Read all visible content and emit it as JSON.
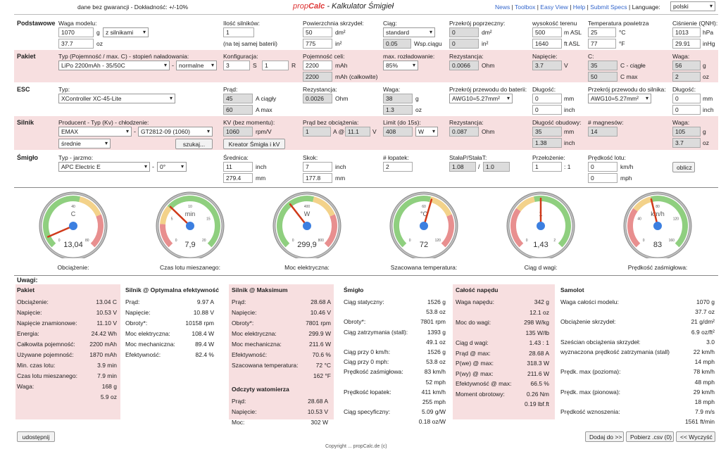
{
  "top": {
    "warranty": "dane bez gwarancji - Dokładność: +/-10%",
    "brand_prefix": "prop",
    "brand_name": "Calc",
    "brand_rest": " - Kalkulator Śmigieł",
    "links": [
      "News",
      "Toolbox",
      "Easy View",
      "Help",
      "Submit Specs"
    ],
    "language_label": "Language:",
    "language": "polski"
  },
  "basic": {
    "title": "Podstawowe",
    "weight_label": "Waga modelu:",
    "weight_g": "1070",
    "weight_unit_g": "g",
    "weight_mode": "z silnikami",
    "weight_oz": "37.7",
    "weight_unit_oz": "oz",
    "motors_label": "Ilość silników:",
    "motors": "1",
    "motors_note": "(na tej samej baterii)",
    "wing_area_label": "Powierzchnia skrzydeł:",
    "wing_dm2": "50",
    "wing_unit_dm2": "dm²",
    "wing_in2": "775",
    "wing_unit_in2": "in²",
    "drag_label": "Ciąg:",
    "drag_mode": "standard",
    "drag_coef": "0.05",
    "drag_coef_label": "Wsp.ciągu",
    "cross_label": "Przekrój poprzeczny:",
    "cross_dm2": "0",
    "cross_unit_dm2": "dm²",
    "cross_in2": "0",
    "cross_unit_in2": "in²",
    "elev_label": "wysokość terenu",
    "elev_m": "500",
    "elev_unit_m": "m ASL",
    "elev_ft": "1640",
    "elev_unit_ft": "ft ASL",
    "temp_label": "Temperatura powietrza",
    "temp_c": "25",
    "temp_unit_c": "°C",
    "temp_f": "77",
    "temp_unit_f": "°F",
    "press_label": "Ciśnienie (QNH):",
    "press_hpa": "1013",
    "press_unit_hpa": "hPa",
    "press_inhg": "29.91",
    "press_unit_inhg": "inHg"
  },
  "pack": {
    "title": "Pakiet",
    "type_label": "Typ (Pojemność / max. C) - stopień naładowania:",
    "type": "LiPo 2200mAh - 35/50C",
    "charge": "normalne",
    "config_label": "Konfiguracja:",
    "s": "3",
    "s_unit": "S",
    "p": "1",
    "p_unit": "R",
    "cap_label": "Pojemność celi:",
    "cap1": "2200",
    "cap1_unit": "mAh",
    "cap2": "2200",
    "cap2_unit": "mAh (całkowite)",
    "disch_label": "max. rozładowanie:",
    "disch": "85%",
    "res_label": "Rezystancja:",
    "res": "0.0066",
    "res_unit": "Ohm",
    "volt_label": "Napięcie:",
    "volt": "3.7",
    "volt_unit": "V",
    "c_label": "C:",
    "c_cont": "35",
    "c_cont_unit": "C - ciągłe",
    "c_max": "50",
    "c_max_unit": "C max",
    "weight_label": "Waga:",
    "weight_g": "56",
    "weight_unit_g": "g",
    "weight_oz": "2",
    "weight_unit_oz": "oz"
  },
  "esc": {
    "title": "ESC",
    "type_label": "Typ:",
    "type": "XController XC-45-Lite",
    "cur_label": "Prąd:",
    "cur_cont": "45",
    "cur_cont_unit": "A ciągły",
    "cur_max": "60",
    "cur_max_unit": "A max",
    "res_label": "Rezystancja:",
    "res": "0.0026",
    "res_unit": "Ohm",
    "weight_label": "Waga:",
    "weight_g": "38",
    "weight_unit_g": "g",
    "weight_oz": "1.3",
    "weight_unit_oz": "oz",
    "bat_wire_label": "Przekrój przewodu do baterii:",
    "bat_wire": "AWG10=5.27mm²",
    "len1_label": "Długość:",
    "len1_mm": "0",
    "len1_unit_mm": "mm",
    "len1_in": "0",
    "len1_unit_in": "inch",
    "mot_wire_label": "Przekrój przewodu do silnika:",
    "mot_wire": "AWG10=5.27mm²",
    "len2_label": "Długość:",
    "len2_mm": "0",
    "len2_unit_mm": "mm",
    "len2_in": "0",
    "len2_unit_in": "inch"
  },
  "motor": {
    "title": "Silnik",
    "type_label": "Producent - Typ (Kv) - chłodzenie:",
    "maker": "EMAX",
    "model": "GT2812-09 (1060)",
    "cooling": "średnie",
    "search": "szukaj...",
    "kv_label": "KV (bez momentu):",
    "kv": "1060",
    "kv_unit": "rpm/V",
    "editor": "Kreator Śmigła i kV",
    "noload_label": "Prąd bez obciążenia:",
    "noload_a": "1",
    "noload_a_unit": "A @",
    "noload_v": "11.1",
    "noload_v_unit": "V",
    "limit_label": "Limit (do 15s):",
    "limit": "408",
    "limit_unit": "W",
    "res_label": "Rezystancja:",
    "res": "0.087",
    "res_unit": "Ohm",
    "case_label": "Długość obudowy:",
    "case_mm": "35",
    "case_unit_mm": "mm",
    "case_in": "1.38",
    "case_unit_in": "inch",
    "poles_label": "# magnesów:",
    "poles": "14",
    "weight_label": "Waga:",
    "weight_g": "105",
    "weight_unit_g": "g",
    "weight_oz": "3.7",
    "weight_unit_oz": "oz"
  },
  "prop": {
    "title": "Śmigło",
    "type_label": "Typ - jarzmo:",
    "type": "APC Electric E",
    "angle": "0°",
    "dia_label": "Średnica:",
    "dia_in": "11",
    "dia_unit_in": "inch",
    "dia_mm": "279.4",
    "dia_unit_mm": "mm",
    "pitch_label": "Skok:",
    "pitch_in": "7",
    "pitch_unit_in": "inch",
    "pitch_mm": "177.8",
    "pitch_unit_mm": "mm",
    "blades_label": "# łopatek:",
    "blades": "2",
    "const_label": "StałaP/StałaT:",
    "const_p": "1.08",
    "const_t": "1.0",
    "ratio_label": "Przełożenie:",
    "ratio": "1",
    "ratio_unit": ": 1",
    "speed_label": "Prędkość lotu:",
    "speed_kmh": "0",
    "speed_unit_kmh": "km/h",
    "speed_mph": "0",
    "speed_unit_mph": "mph",
    "calc": "oblicz"
  },
  "gauges": [
    {
      "caption": "Obciążenie:",
      "unit": "C",
      "value": "13,04",
      "ticks": [
        "0",
        "40",
        "80"
      ],
      "needle": 0.08
    },
    {
      "caption": "Czas lotu mieszanego:",
      "unit": "min",
      "value": "7,9",
      "ticks": [
        "0",
        "5",
        "10",
        "15",
        "20"
      ],
      "needle": 0.33
    },
    {
      "caption": "Moc elektryczna:",
      "unit": "W",
      "value": "299,9",
      "ticks": [
        "0",
        "400",
        "800"
      ],
      "needle": 0.36
    },
    {
      "caption": "Szacowana temperatura:",
      "unit": "°C",
      "value": "72",
      "ticks": [
        "0",
        "60",
        "120"
      ],
      "needle": 0.56
    },
    {
      "caption": "Ciąg d wagi:",
      "unit": "1",
      "value": "1,43",
      "ticks": [
        "0",
        "1",
        "2"
      ],
      "needle": 0.5
    },
    {
      "caption": "Prędkość zaśmigłowa:",
      "unit": "km/h",
      "value": "83",
      "ticks": [
        "0",
        "40",
        "80",
        "120",
        "160"
      ],
      "needle": 0.45
    }
  ],
  "summary": {
    "notes": "Uwagi:",
    "pack": {
      "title": "Pakiet",
      "rows": [
        [
          "Obciążenie:",
          "13.04 C"
        ],
        [
          "Napięcie:",
          "10.53 V"
        ],
        [
          "Napięcie znamionowe:",
          "11.10 V"
        ],
        [
          "Energia:",
          "24.42 Wh"
        ],
        [
          "Całkowita pojemność:",
          "2200 mAh"
        ],
        [
          "Używane pojemność:",
          "1870 mAh"
        ],
        [
          "Min. czas lotu:",
          "3.9 min"
        ],
        [
          "Czas lotu mieszanego:",
          "7.9 min"
        ],
        [
          "Waga:",
          "168 g"
        ],
        [
          "",
          "5.9 oz"
        ]
      ]
    },
    "opt": {
      "title": "Silnik @ Optymalna efektywność",
      "rows": [
        [
          "Prąd:",
          "9.97 A"
        ],
        [
          "Napięcie:",
          "10.88 V"
        ],
        [
          "Obroty*:",
          "10158 rpm"
        ],
        [
          "Moc elektryczna:",
          "108.4 W"
        ],
        [
          "Moc mechaniczna:",
          "89.4 W"
        ],
        [
          "Efektywność:",
          "82.4 %"
        ]
      ]
    },
    "max": {
      "title": "Silnik @ Maksimum",
      "rows": [
        [
          "Prąd:",
          "28.68 A"
        ],
        [
          "Napięcie:",
          "10.46 V"
        ],
        [
          "Obroty*:",
          "7801 rpm"
        ],
        [
          "Moc elektryczna:",
          "299.9 W"
        ],
        [
          "Moc mechaniczna:",
          "211.6 W"
        ],
        [
          "Efektywność:",
          "70.6 %"
        ],
        [
          "Szacowana temperatura:",
          "72 °C"
        ],
        [
          "",
          "162 °F"
        ]
      ]
    },
    "watt": {
      "title": "Odczyty watomierza",
      "rows": [
        [
          "Prąd:",
          "28.68 A"
        ],
        [
          "Napięcie:",
          "10.53 V"
        ],
        [
          "Moc:",
          "302 W"
        ]
      ]
    },
    "prop": {
      "title": "Śmigło",
      "rows": [
        [
          "Ciąg statyczny:",
          "1526 g"
        ],
        [
          "",
          "53.8 oz"
        ],
        [
          "Obroty*:",
          "7801 rpm"
        ],
        [
          "Ciąg zatrzymania (stall):",
          "1393 g"
        ],
        [
          "",
          "49.1 oz"
        ],
        [
          "Ciąg przy 0 km/h:",
          "1526 g"
        ],
        [
          "Ciąg przy 0 mph:",
          "53.8 oz"
        ],
        [
          "Prędkość zaśmigłowa:",
          "83 km/h"
        ],
        [
          "",
          "52 mph"
        ],
        [
          "Prędkość łopatek:",
          "411 km/h"
        ],
        [
          "",
          "255 mph"
        ],
        [
          "Ciąg specyficzny:",
          "5.09 g/W"
        ],
        [
          "",
          "0.18 oz/W"
        ]
      ]
    },
    "drive": {
      "title": "Całość napędu",
      "rows": [
        [
          "Waga napędu:",
          "342 g"
        ],
        [
          "",
          "12.1 oz"
        ],
        [
          "Moc do wagi:",
          "298 W/kg"
        ],
        [
          "",
          "135 W/lb"
        ],
        [
          "Ciąg d wagi:",
          "1.43 : 1"
        ],
        [
          "Prąd @ max:",
          "28.68 A"
        ],
        [
          "P(we) @ max:",
          "318.3 W"
        ],
        [
          "P(wy) @ max:",
          "211.6 W"
        ],
        [
          "Efektywność @ max:",
          "66.5 %"
        ],
        [
          "Moment obrotowy:",
          "0.26 Nm"
        ],
        [
          "",
          "0.19 lbf.ft"
        ]
      ]
    },
    "plane": {
      "title": "Samolot",
      "rows": [
        [
          "Waga całości modelu:",
          "1070 g"
        ],
        [
          "",
          "37.7 oz"
        ],
        [
          "Obciążenie skrzydeł:",
          "21 g/dm²"
        ],
        [
          "",
          "6.9 oz/ft²"
        ],
        [
          "Sześcian obciążenia skrzydeł:",
          "3.0"
        ],
        [
          "wyznaczona prędkość zatrzymania (stall)",
          "22 km/h"
        ],
        [
          "",
          "14 mph"
        ],
        [
          "Prędk. max (pozioma):",
          "78 km/h"
        ],
        [
          "",
          "48 mph"
        ],
        [
          "Prędk. max (pionowa):",
          "29 km/h"
        ],
        [
          "",
          "18 mph"
        ],
        [
          "Prędkość wznoszenia:",
          "7.9 m/s"
        ],
        [
          "",
          "1561 ft/min"
        ]
      ]
    }
  },
  "bottom": {
    "share": "udostępnij",
    "add": "Dodaj do >>",
    "csv": "Pobierz .csv (0)",
    "clear": "<< Wyczyść",
    "footer": "Copyright ... propCalc.de (c)"
  }
}
